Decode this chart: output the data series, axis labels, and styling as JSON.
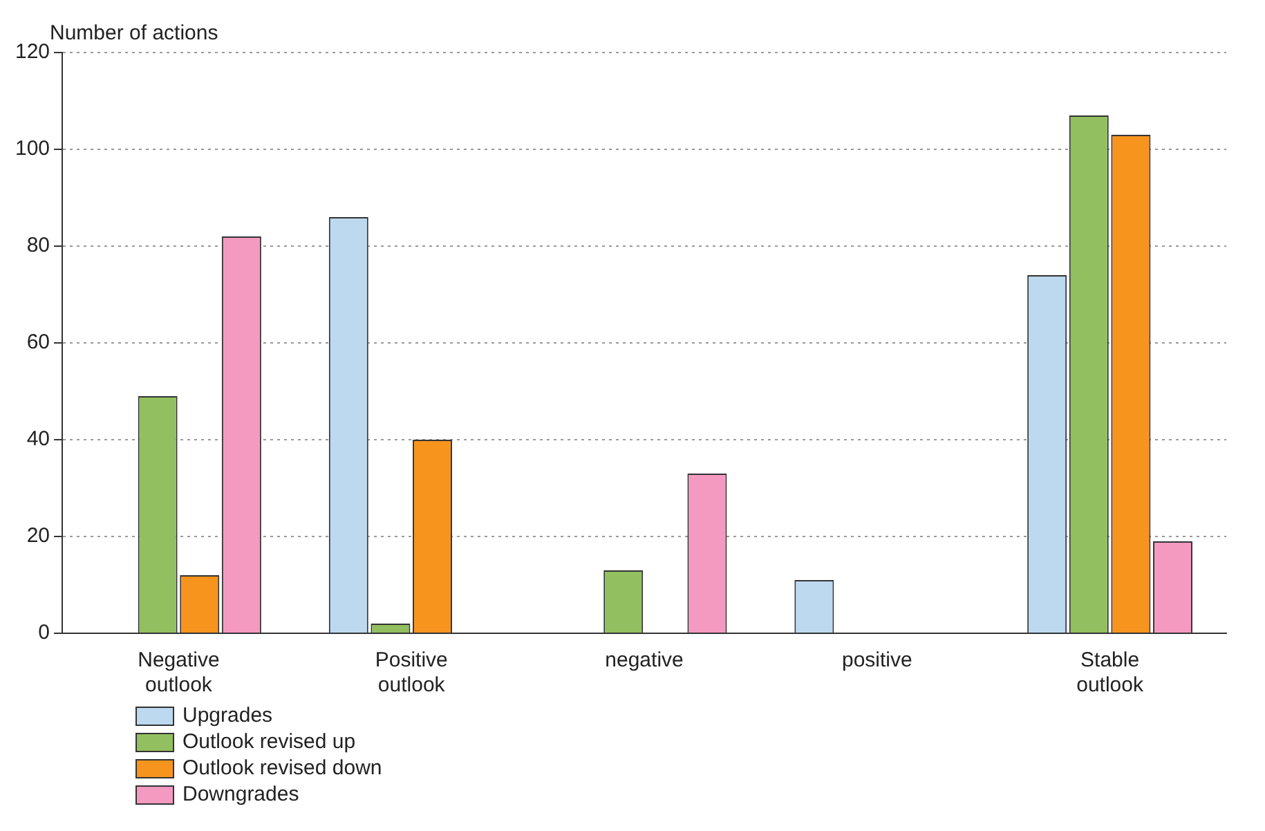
{
  "chart_data": {
    "type": "bar",
    "ylabel": "Number of actions",
    "categories": [
      "Negative outlook",
      "Positive outlook",
      "negative",
      "positive",
      "Stable outlook"
    ],
    "series": [
      {
        "name": "Upgrades",
        "color": "#bcd9f0",
        "values": [
          null,
          86,
          null,
          11,
          74
        ]
      },
      {
        "name": "Outlook revised up",
        "color": "#92c060",
        "values": [
          49,
          2,
          13,
          null,
          107
        ]
      },
      {
        "name": "Outlook revised down",
        "color": "#f7941d",
        "values": [
          12,
          40,
          null,
          null,
          103
        ]
      },
      {
        "name": "Downgrades",
        "color": "#f49ac1",
        "values": [
          82,
          null,
          33,
          null,
          19
        ]
      }
    ],
    "ylim": [
      0,
      120
    ],
    "yticks": [
      0,
      20,
      40,
      60,
      80,
      100,
      120
    ],
    "grid": "y",
    "legend": "bottom left"
  }
}
